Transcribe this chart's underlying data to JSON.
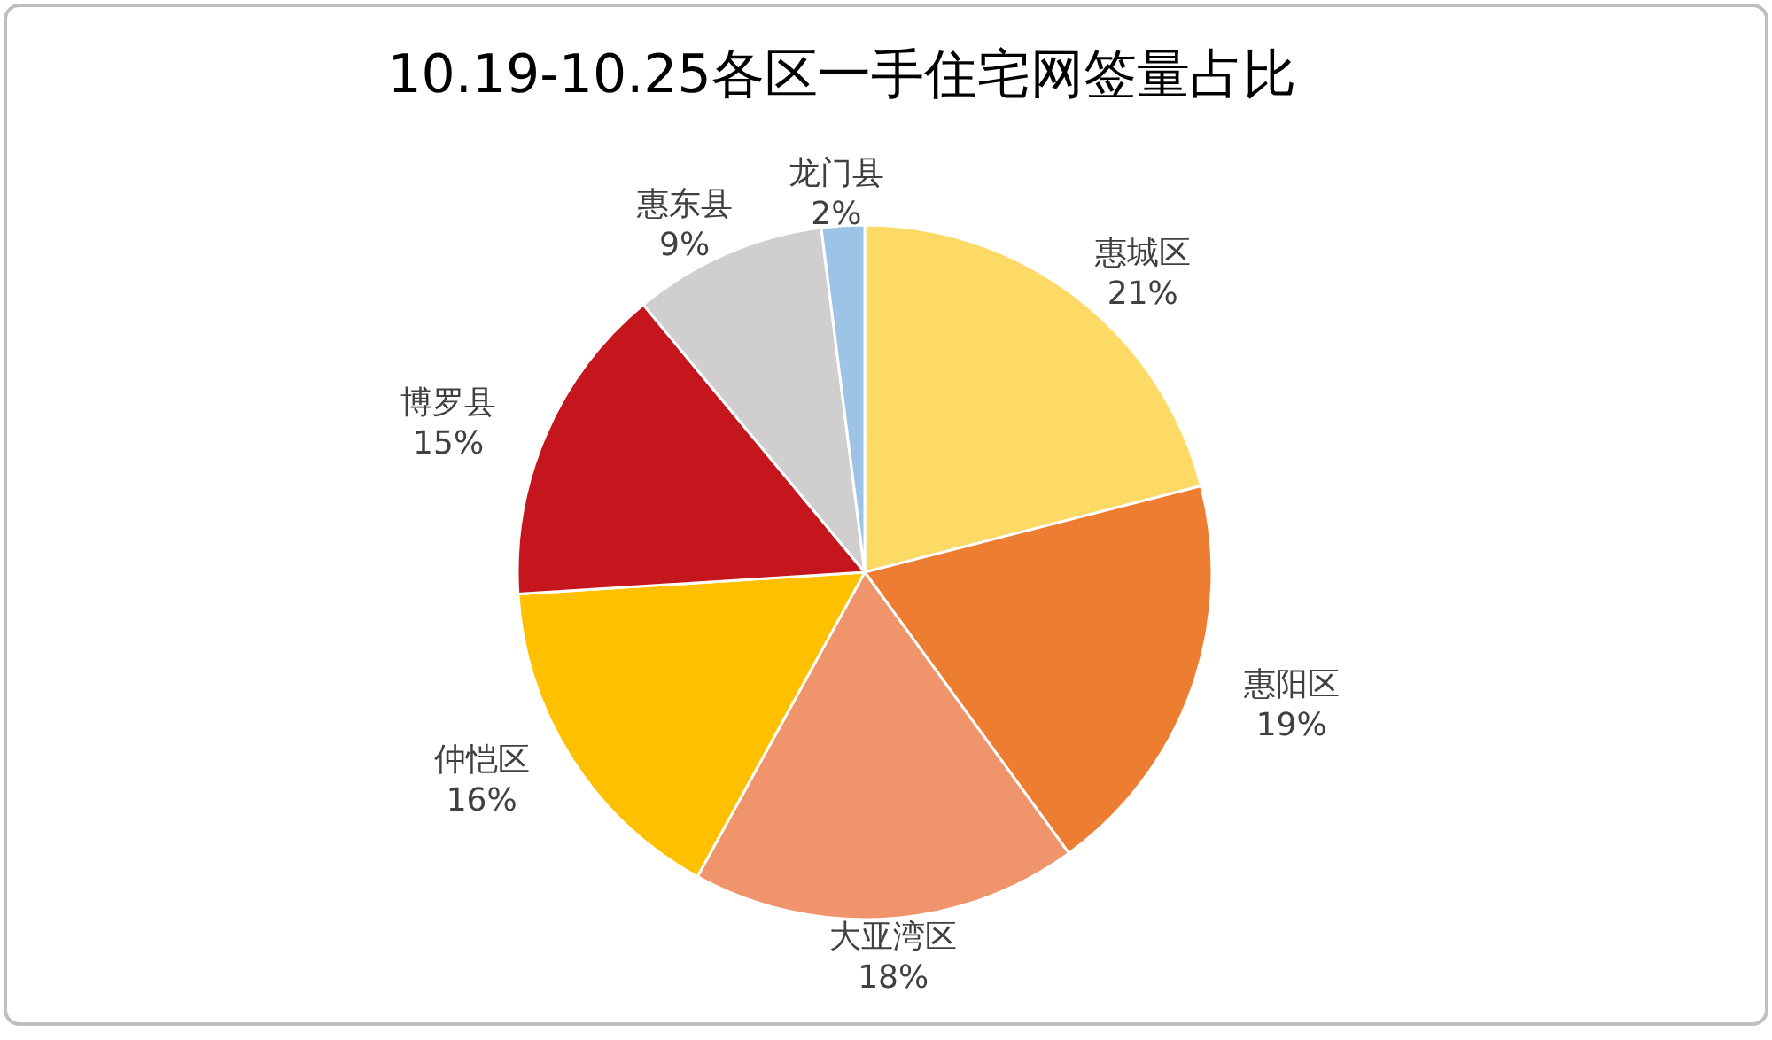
{
  "chart_data": {
    "type": "pie",
    "title": "10.19-10.25各区一手住宅网签量占比",
    "categories": [
      "惠城区",
      "惠阳区",
      "大亚湾区",
      "仲恺区",
      "博罗县",
      "惠东县",
      "龙门县"
    ],
    "values": [
      21,
      19,
      18,
      16,
      15,
      9,
      2
    ],
    "colors": [
      "#fdd966",
      "#ed7d31",
      "#f0956b",
      "#ffc000",
      "#c5161d",
      "#d0cece",
      "#9dc3e6"
    ],
    "value_labels": [
      "21%",
      "19%",
      "18%",
      "16%",
      "15%",
      "9%",
      "2%"
    ]
  }
}
